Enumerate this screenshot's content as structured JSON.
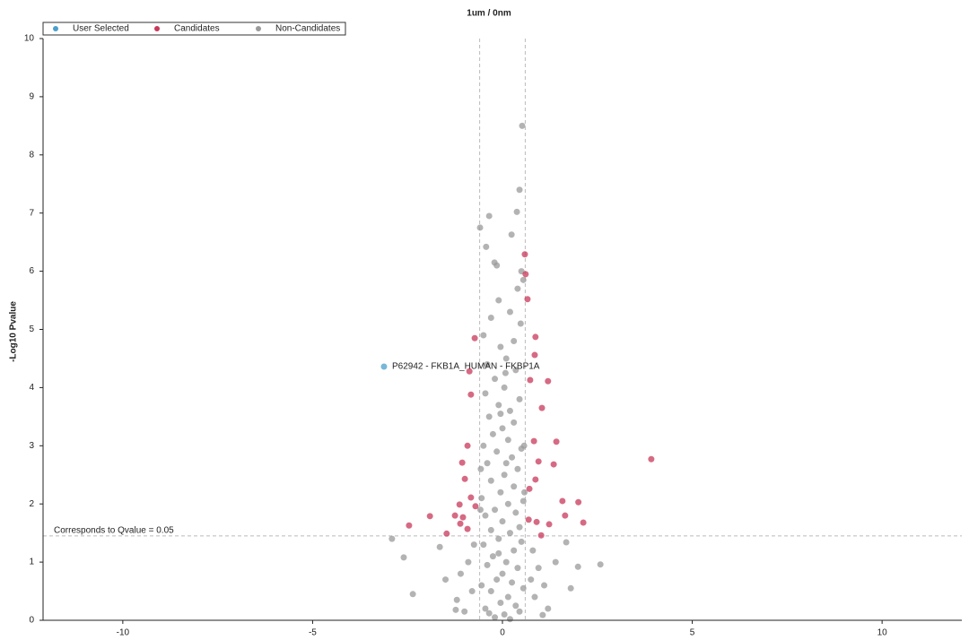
{
  "chart_data": {
    "type": "scatter",
    "title": "1um / 0nm",
    "y_label": "-Log10 Pvalue",
    "xlim": [
      -12.1,
      12.1
    ],
    "xticks": [
      -10,
      -5,
      0,
      5,
      10
    ],
    "ylim": [
      0,
      10
    ],
    "yticks": [
      0,
      1,
      2,
      3,
      4,
      5,
      6,
      7,
      8,
      9,
      10
    ],
    "grid": false,
    "legend": "top-left",
    "thresholds": {
      "x": [
        -0.6,
        0.6
      ],
      "y": 1.45
    },
    "threshold_label": "Corresponds to Qvalue = 0.05",
    "point_label": "P62942 - FKB1A_HUMAN - FKBP1A",
    "series": [
      {
        "name": "User Selected",
        "color": "#4a9fcc",
        "x": [
          -3.12
        ],
        "values": [
          4.36
        ]
      },
      {
        "name": "Candidates",
        "color": "#c8385a",
        "x": [
          3.92,
          1.42,
          1.2,
          0.87,
          0.61,
          0.59,
          0.73,
          1.04,
          0.83,
          0.95,
          1.35,
          1.58,
          2.0,
          2.13,
          1.65,
          1.23,
          1.02,
          0.71,
          0.69,
          0.9,
          -0.87,
          -0.73,
          -0.83,
          -0.92,
          -1.06,
          -0.99,
          -1.13,
          -1.04,
          -1.11,
          -1.25,
          -1.47,
          -1.91,
          -2.46,
          -0.83,
          -0.92,
          -0.71,
          0.66,
          0.85,
          0.87
        ],
        "values": [
          2.77,
          3.07,
          4.11,
          4.87,
          5.95,
          6.29,
          4.13,
          3.65,
          3.08,
          2.73,
          2.68,
          2.05,
          2.03,
          1.68,
          1.8,
          1.65,
          1.46,
          2.26,
          1.73,
          1.69,
          4.28,
          4.85,
          3.88,
          3.0,
          2.71,
          2.43,
          1.99,
          1.77,
          1.66,
          1.8,
          1.49,
          1.79,
          1.63,
          2.11,
          1.57,
          1.96,
          5.52,
          4.56,
          2.42
        ]
      },
      {
        "name": "Non-Candidates",
        "color": "#9a9a9a",
        "x": [
          0.52,
          0.45,
          0.38,
          -0.35,
          -0.59,
          -0.43,
          0.24,
          -0.21,
          -0.15,
          0.5,
          0.55,
          0.4,
          -0.1,
          0.2,
          -0.3,
          0.48,
          -0.5,
          0.3,
          -0.05,
          0.1,
          -0.4,
          0.35,
          -0.2,
          0.05,
          -0.45,
          0.45,
          -0.1,
          0.2,
          -0.35,
          0.3,
          0,
          -0.25,
          0.15,
          -0.5,
          0.5,
          -0.15,
          0.25,
          -0.4,
          0.4,
          0.05,
          -0.3,
          0.3,
          -0.05,
          -0.55,
          0.55,
          0.15,
          -0.2,
          0.35,
          -0.45,
          0,
          0.45,
          -0.3,
          0.2,
          -0.1,
          0.5,
          -0.5,
          0.3,
          -0.25,
          0.1,
          -0.4,
          0.4,
          0,
          -0.15,
          0.25,
          -0.55,
          0.55,
          -0.3,
          0.15,
          -0.05,
          0.35,
          -0.45,
          0.45,
          0.05,
          -0.2,
          0.2,
          -0.35,
          -0.1,
          0.1,
          -0.05,
          0.08,
          -0.75,
          -0.9,
          -1.1,
          -0.8,
          -1.2,
          -1.0,
          0.8,
          0.95,
          1.1,
          0.85,
          1.2,
          0.75,
          -2.91,
          -2.6,
          -2.36,
          -1.65,
          2.58,
          1.99,
          1.8,
          1.68,
          1.06,
          -1.23,
          -1.5,
          1.4,
          -0.58,
          0.58,
          -0.57,
          0.57
        ],
        "values": [
          8.5,
          7.4,
          7.02,
          6.95,
          6.75,
          6.42,
          6.63,
          6.15,
          6.1,
          6.0,
          5.85,
          5.7,
          5.5,
          5.3,
          5.2,
          5.1,
          4.9,
          4.8,
          4.7,
          4.5,
          4.4,
          4.3,
          4.15,
          4.0,
          3.9,
          3.8,
          3.7,
          3.6,
          3.5,
          3.4,
          3.3,
          3.2,
          3.1,
          3.0,
          2.95,
          2.9,
          2.8,
          2.7,
          2.6,
          2.5,
          2.4,
          2.3,
          2.2,
          2.1,
          2.05,
          2.0,
          1.9,
          1.85,
          1.8,
          1.7,
          1.6,
          1.55,
          1.5,
          1.4,
          1.35,
          1.3,
          1.2,
          1.1,
          1.0,
          0.95,
          0.9,
          0.8,
          0.7,
          0.65,
          0.6,
          0.55,
          0.5,
          0.4,
          0.3,
          0.25,
          0.2,
          0.15,
          0.1,
          0.05,
          0.02,
          0.12,
          1.15,
          2.7,
          3.55,
          4.25,
          1.3,
          1.0,
          0.8,
          0.5,
          0.35,
          0.15,
          1.2,
          0.9,
          0.6,
          0.4,
          0.2,
          0.7,
          1.4,
          1.08,
          0.45,
          1.26,
          0.96,
          0.92,
          0.55,
          1.34,
          0.09,
          0.18,
          0.7,
          1.0,
          1.9,
          2.2,
          2.6,
          3.0
        ]
      }
    ]
  }
}
